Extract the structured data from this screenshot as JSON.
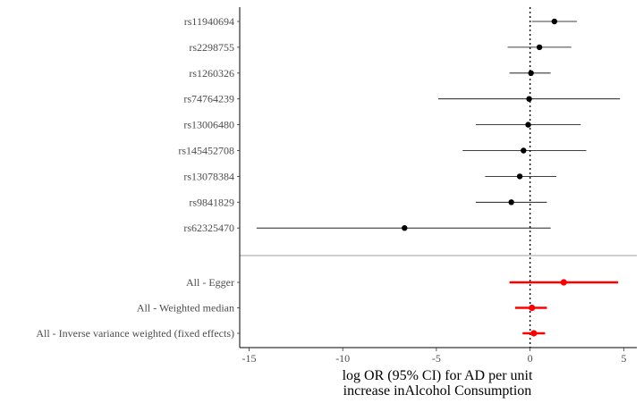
{
  "chart_data": {
    "type": "forest",
    "xlabel_line1": "log OR (95% CI) for AD per unit",
    "xlabel_line2": "increase inAlcohol Consumption",
    "xlim": [
      -15.5,
      5.7
    ],
    "xticks": [
      -15,
      -10,
      -5,
      0,
      5
    ],
    "xtick_labels": [
      "-15",
      "-10",
      "-5",
      "0",
      "5"
    ],
    "reference_line": 0,
    "snps": [
      {
        "label": "rs11940694",
        "estimate": 1.3,
        "lower": 0.1,
        "upper": 2.5
      },
      {
        "label": "rs2298755",
        "estimate": 0.5,
        "lower": -1.2,
        "upper": 2.2
      },
      {
        "label": "rs1260326",
        "estimate": 0.05,
        "lower": -1.1,
        "upper": 1.1
      },
      {
        "label": "rs74764239",
        "estimate": -0.05,
        "lower": -4.9,
        "upper": 4.8
      },
      {
        "label": "rs13006480",
        "estimate": -0.1,
        "lower": -2.9,
        "upper": 2.7
      },
      {
        "label": "rs145452708",
        "estimate": -0.35,
        "lower": -3.6,
        "upper": 3.0
      },
      {
        "label": "rs13078384",
        "estimate": -0.55,
        "lower": -2.4,
        "upper": 1.4
      },
      {
        "label": "rs9841829",
        "estimate": -1.0,
        "lower": -2.9,
        "upper": 0.9
      },
      {
        "label": "rs62325470",
        "estimate": -6.7,
        "lower": -14.6,
        "upper": 1.1
      }
    ],
    "summary": [
      {
        "label": "All - Egger",
        "estimate": 1.8,
        "lower": -1.1,
        "upper": 4.7
      },
      {
        "label": "All - Weighted median",
        "estimate": 0.1,
        "lower": -0.8,
        "upper": 0.9
      },
      {
        "label": "All - Inverse variance weighted (fixed effects)",
        "estimate": 0.2,
        "lower": -0.4,
        "upper": 0.8
      }
    ],
    "colors": {
      "snp": "#000000",
      "summary": "#ff0000",
      "separator": "#b3b3b3",
      "axis": "#000000",
      "tick_text": "#4d4d4d"
    }
  }
}
